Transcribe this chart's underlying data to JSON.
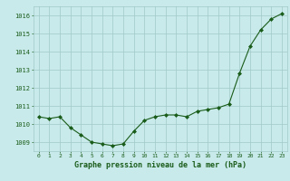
{
  "x": [
    0,
    1,
    2,
    3,
    4,
    5,
    6,
    7,
    8,
    9,
    10,
    11,
    12,
    13,
    14,
    15,
    16,
    17,
    18,
    19,
    20,
    21,
    22,
    23
  ],
  "y": [
    1010.4,
    1010.3,
    1010.4,
    1009.8,
    1009.4,
    1009.0,
    1008.9,
    1008.8,
    1008.9,
    1009.6,
    1010.2,
    1010.4,
    1010.5,
    1010.5,
    1010.4,
    1010.7,
    1010.8,
    1010.9,
    1011.1,
    1012.8,
    1014.3,
    1015.2,
    1015.8,
    1016.1
  ],
  "line_color": "#1a5c1a",
  "marker": "D",
  "marker_size": 2.0,
  "bg_color": "#c8eaea",
  "grid_color": "#a0c8c8",
  "xlabel": "Graphe pression niveau de la mer (hPa)",
  "xlabel_color": "#1a5c1a",
  "tick_color": "#1a5c1a",
  "ylim": [
    1008.5,
    1016.5
  ],
  "xlim": [
    -0.5,
    23.5
  ],
  "yticks": [
    1009,
    1010,
    1011,
    1012,
    1013,
    1014,
    1015,
    1016
  ],
  "xtick_labels": [
    "0",
    "1",
    "2",
    "3",
    "4",
    "5",
    "6",
    "7",
    "8",
    "9",
    "10",
    "11",
    "12",
    "13",
    "14",
    "15",
    "16",
    "17",
    "18",
    "19",
    "20",
    "21",
    "22",
    "23"
  ]
}
